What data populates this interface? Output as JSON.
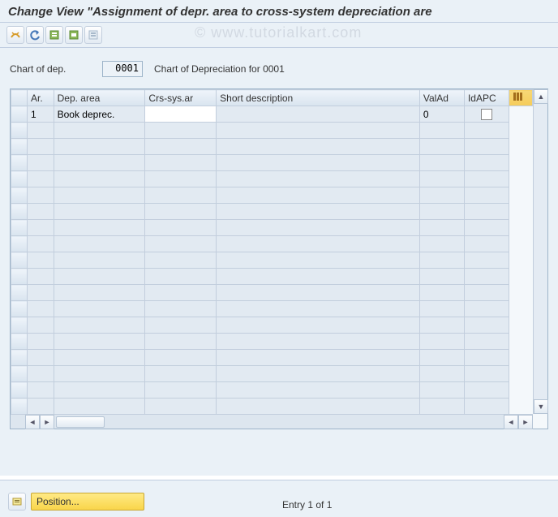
{
  "header": {
    "title": "Change View \"Assignment of depr. area to cross-system depreciation are"
  },
  "watermark": "© www.tutorialkart.com",
  "toolbar": {
    "icons": [
      "other-view-icon",
      "undo-icon",
      "select-all-icon",
      "select-block-icon",
      "deselect-icon"
    ]
  },
  "form": {
    "chart_label": "Chart of dep.",
    "chart_value": "0001",
    "chart_desc": "Chart of Depreciation for 0001"
  },
  "table": {
    "columns": {
      "ar": "Ar.",
      "dep_area": "Dep. area",
      "crs_sys": "Crs-sys.ar",
      "short_desc": "Short description",
      "valad": "ValAd",
      "idapc": "IdAPC"
    },
    "col_widths": {
      "sel": 16,
      "ar": 26,
      "dep_area": 90,
      "crs_sys": 70,
      "short_desc": 200,
      "valad": 44,
      "idapc": 44,
      "conf": 22
    },
    "col_bg": {
      "header": "#e2ebf3",
      "cell": "#e2eaf2",
      "editable": "#ffffff",
      "config": "#f5cc5a"
    },
    "rows": [
      {
        "ar": "1",
        "dep_area": "Book deprec.",
        "crs_sys": "",
        "short_desc": "",
        "valad": "0",
        "idapc": false
      }
    ],
    "empty_row_count": 18
  },
  "footer": {
    "position_label": "Position...",
    "entry_text": "Entry 1 of 1"
  }
}
